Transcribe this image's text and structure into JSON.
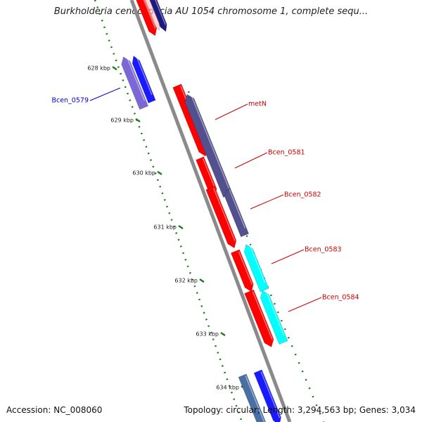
{
  "title": "Burkholderia cenocepacia AU 1054 chromosome 1, complete sequ...",
  "footer": {
    "accession": "Accession: NC_008060",
    "summary": "Topology: circular; Length: 3,294,563 bp; Genes: 3,034"
  },
  "colors": {
    "backbone": "#8a8a8a",
    "tick": "#1f7a1f",
    "forward_label": "#cc0000",
    "reverse_label": "#0000cc",
    "red": "#ff0000",
    "navy": "#1a1a80",
    "purple": "#53508f",
    "violet": "#7b68d6",
    "blue": "#1a1aff",
    "cyan": "#00ffff",
    "steel": "#4a6fa5"
  },
  "ticks": [
    {
      "label": "628 kbp",
      "kbp": 628
    },
    {
      "label": "629 kbp",
      "kbp": 629
    },
    {
      "label": "630 kbp",
      "kbp": 630
    },
    {
      "label": "631 kbp",
      "kbp": 631
    },
    {
      "label": "632 kbp",
      "kbp": 632
    },
    {
      "label": "633 kbp",
      "kbp": 633
    },
    {
      "label": "634 kbp",
      "kbp": 634
    }
  ],
  "gene_labels": [
    {
      "name": "Bcen_0579",
      "side": "left"
    },
    {
      "name": "metN",
      "side": "right"
    },
    {
      "name": "Bcen_0581",
      "side": "right"
    },
    {
      "name": "Bcen_0582",
      "side": "right"
    },
    {
      "name": "Bcen_0583",
      "side": "right"
    },
    {
      "name": "Bcen_0584",
      "side": "right"
    }
  ]
}
